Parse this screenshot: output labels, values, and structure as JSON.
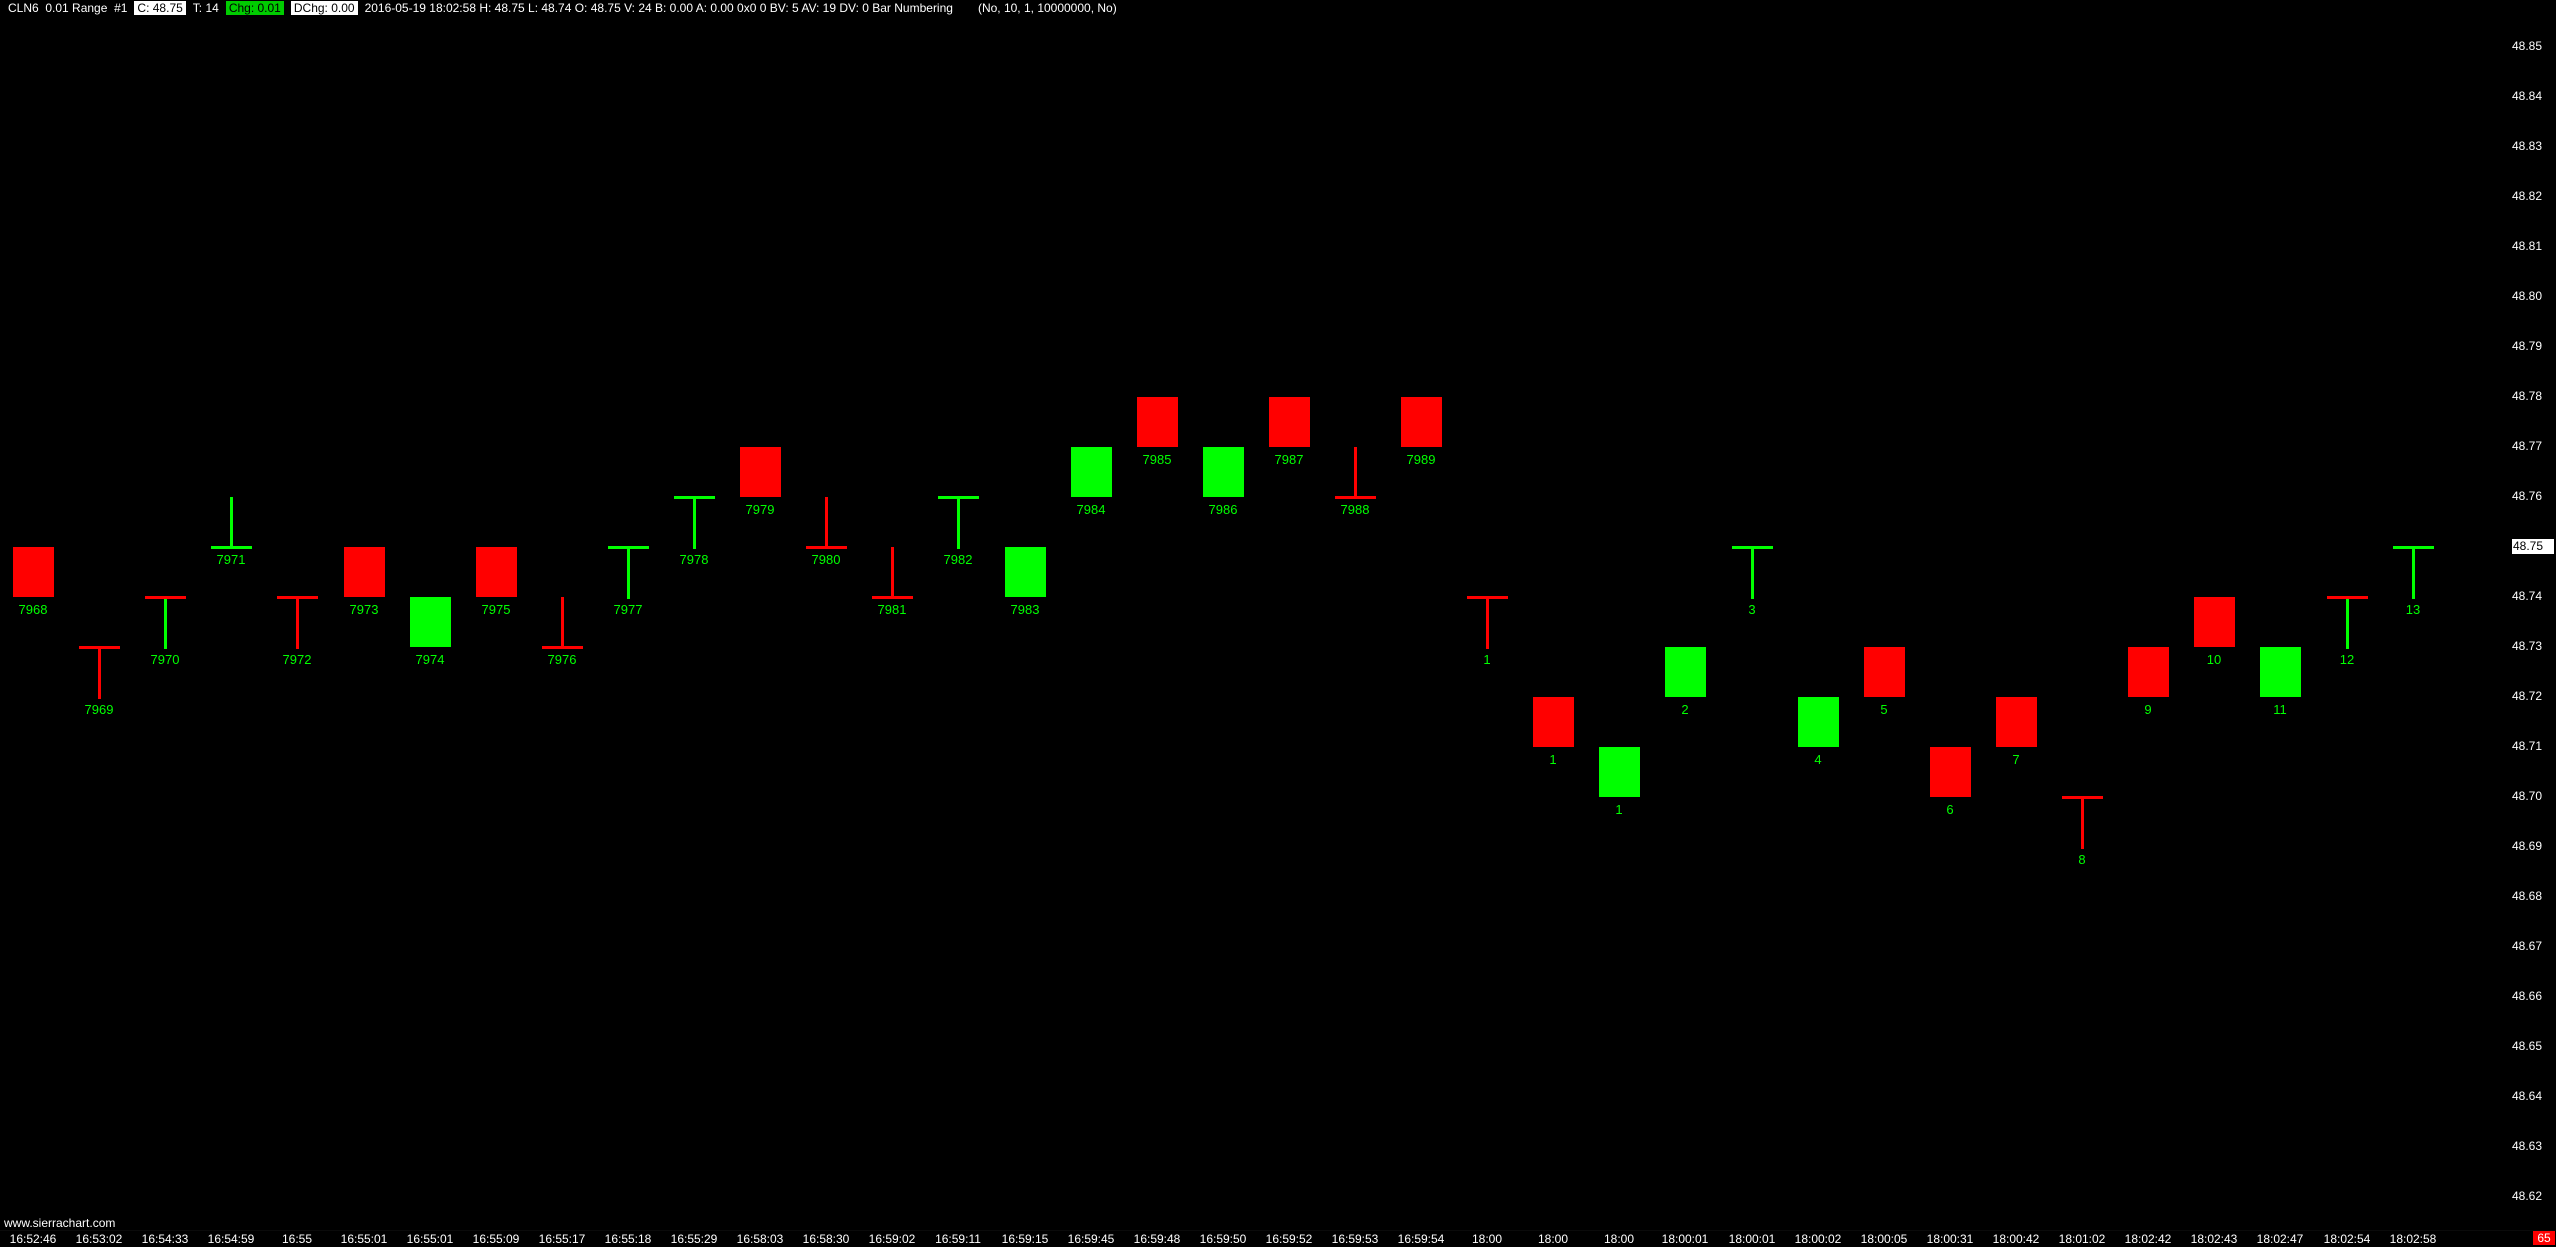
{
  "header": {
    "symbol_info": "CLN6  0.01 Range  #1",
    "last_price_label": "C: 48.75",
    "trades_label": "T: 14",
    "change_label": "Chg: 0.01",
    "daily_change_label": "DChg: 0.00",
    "stats_text": "2016-05-19 18:02:58 H: 48.75 L: 48.74 O: 48.75 V: 24 B: 0.00 A: 0.00 0x0 0 BV: 5 AV: 19 DV: 0 Bar Numbering",
    "study_params": "(No, 10, 1, 10000000, No)"
  },
  "watermark": "www.sierrachart.com",
  "countdown_badge": "65",
  "colors": {
    "up": "#00ff00",
    "down": "#ff0000",
    "label": "#00ff00",
    "axis_text": "#ffffff",
    "background": "#000000",
    "header_change_bg": "#00cc00",
    "highlight_bg": "#ffffff",
    "countdown_bg": "#ff0000"
  },
  "price_axis": {
    "max": 48.85,
    "min": 48.62,
    "tick": 0.01,
    "highlighted_price": "48.75"
  },
  "chart_data": {
    "type": "candlestick",
    "subtype": "range-bar 0.01 with bar-numbering study",
    "symbol": "CLN6",
    "y_axis_range": [
      48.62,
      48.85
    ],
    "legend_position": "none",
    "grid": false,
    "bars": [
      {
        "n": "7968",
        "time": "16:52:46",
        "kind": "body",
        "color": "down",
        "hi": 48.75,
        "lo": 48.74
      },
      {
        "n": "7969",
        "time": "16:53:02",
        "kind": "doji",
        "color": "down",
        "hi": 48.73,
        "lo": 48.72,
        "dash": 48.73
      },
      {
        "n": "7970",
        "time": "16:54:33",
        "kind": "doji",
        "color": "up",
        "hi": 48.74,
        "lo": 48.73,
        "dash": 48.74,
        "dash_color": "down"
      },
      {
        "n": "7971",
        "time": "16:54:59",
        "kind": "doji",
        "color": "up",
        "hi": 48.76,
        "lo": 48.75,
        "dash": 48.75
      },
      {
        "n": "7972",
        "time": "16:55",
        "kind": "doji",
        "color": "down",
        "hi": 48.74,
        "lo": 48.73,
        "dash": 48.74
      },
      {
        "n": "7973",
        "time": "16:55:01",
        "kind": "body",
        "color": "down",
        "hi": 48.75,
        "lo": 48.74
      },
      {
        "n": "7974",
        "time": "16:55:01",
        "kind": "body",
        "color": "up",
        "hi": 48.74,
        "lo": 48.73
      },
      {
        "n": "7975",
        "time": "16:55:09",
        "kind": "body",
        "color": "down",
        "hi": 48.75,
        "lo": 48.74
      },
      {
        "n": "7976",
        "time": "16:55:17",
        "kind": "doji",
        "color": "down",
        "hi": 48.74,
        "lo": 48.73,
        "dash": 48.73
      },
      {
        "n": "7977",
        "time": "16:55:18",
        "kind": "doji",
        "color": "up",
        "hi": 48.75,
        "lo": 48.74,
        "dash": 48.75
      },
      {
        "n": "7978",
        "time": "16:55:29",
        "kind": "doji",
        "color": "up",
        "hi": 48.76,
        "lo": 48.75,
        "dash": 48.76
      },
      {
        "n": "7979",
        "time": "16:58:03",
        "kind": "body",
        "color": "down",
        "hi": 48.77,
        "lo": 48.76
      },
      {
        "n": "7980",
        "time": "16:58:30",
        "kind": "doji",
        "color": "down",
        "hi": 48.76,
        "lo": 48.75,
        "dash": 48.75
      },
      {
        "n": "7981",
        "time": "16:59:02",
        "kind": "doji",
        "color": "down",
        "hi": 48.75,
        "lo": 48.74,
        "dash": 48.74
      },
      {
        "n": "7982",
        "time": "16:59:11",
        "kind": "doji",
        "color": "up",
        "hi": 48.76,
        "lo": 48.75,
        "dash": 48.76
      },
      {
        "n": "7983",
        "time": "16:59:15",
        "kind": "body",
        "color": "up",
        "hi": 48.75,
        "lo": 48.74
      },
      {
        "n": "7984",
        "time": "16:59:45",
        "kind": "body",
        "color": "up",
        "hi": 48.77,
        "lo": 48.76
      },
      {
        "n": "7985",
        "time": "16:59:48",
        "kind": "body",
        "color": "down",
        "hi": 48.78,
        "lo": 48.77
      },
      {
        "n": "7986",
        "time": "16:59:50",
        "kind": "body",
        "color": "up",
        "hi": 48.77,
        "lo": 48.76
      },
      {
        "n": "7987",
        "time": "16:59:52",
        "kind": "body",
        "color": "down",
        "hi": 48.78,
        "lo": 48.77
      },
      {
        "n": "7988",
        "time": "16:59:53",
        "kind": "doji",
        "color": "down",
        "hi": 48.77,
        "lo": 48.76,
        "dash": 48.76
      },
      {
        "n": "7989",
        "time": "16:59:54",
        "kind": "body",
        "color": "down",
        "hi": 48.78,
        "lo": 48.77
      },
      {
        "n": "1",
        "time": "18:00",
        "kind": "doji",
        "color": "down",
        "hi": 48.74,
        "lo": 48.73,
        "dash": 48.74
      },
      {
        "n": "1",
        "time": "18:00",
        "kind": "body",
        "color": "down",
        "hi": 48.72,
        "lo": 48.71
      },
      {
        "n": "1",
        "time": "18:00",
        "kind": "body",
        "color": "up",
        "hi": 48.71,
        "lo": 48.7
      },
      {
        "n": "2",
        "time": "18:00:01",
        "kind": "body",
        "color": "up",
        "hi": 48.73,
        "lo": 48.72
      },
      {
        "n": "3",
        "time": "18:00:01",
        "kind": "doji",
        "color": "up",
        "hi": 48.75,
        "lo": 48.74,
        "dash": 48.75
      },
      {
        "n": "4",
        "time": "18:00:02",
        "kind": "body",
        "color": "up",
        "hi": 48.72,
        "lo": 48.71
      },
      {
        "n": "5",
        "time": "18:00:05",
        "kind": "body",
        "color": "down",
        "hi": 48.73,
        "lo": 48.72
      },
      {
        "n": "6",
        "time": "18:00:31",
        "kind": "body",
        "color": "down",
        "hi": 48.71,
        "lo": 48.7
      },
      {
        "n": "7",
        "time": "18:00:42",
        "kind": "body",
        "color": "down",
        "hi": 48.72,
        "lo": 48.71
      },
      {
        "n": "8",
        "time": "18:01:02",
        "kind": "doji",
        "color": "down",
        "hi": 48.7,
        "lo": 48.69,
        "dash": 48.7
      },
      {
        "n": "9",
        "time": "18:02:42",
        "kind": "body",
        "color": "down",
        "hi": 48.73,
        "lo": 48.72
      },
      {
        "n": "10",
        "time": "18:02:43",
        "kind": "body",
        "color": "down",
        "hi": 48.74,
        "lo": 48.73
      },
      {
        "n": "11",
        "time": "18:02:47",
        "kind": "body",
        "color": "up",
        "hi": 48.73,
        "lo": 48.72
      },
      {
        "n": "12",
        "time": "18:02:54",
        "kind": "doji",
        "color": "up",
        "hi": 48.74,
        "lo": 48.73,
        "dash": 48.74,
        "dash_color": "down"
      },
      {
        "n": "13",
        "time": "18:02:58",
        "kind": "doji",
        "color": "up",
        "hi": 48.75,
        "lo": 48.74,
        "dash": 48.75
      }
    ]
  }
}
